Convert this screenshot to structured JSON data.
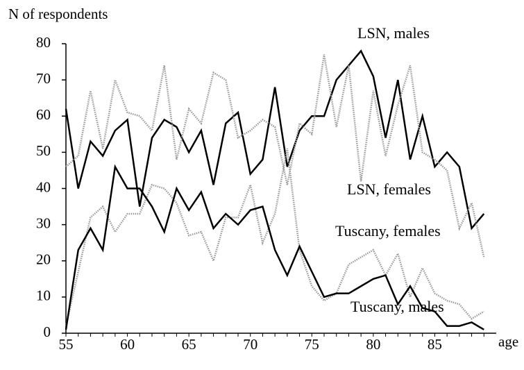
{
  "chart_data": {
    "type": "line",
    "y_label": "N of respondents",
    "x_label": "age",
    "x": [
      55,
      56,
      57,
      58,
      59,
      60,
      61,
      62,
      63,
      64,
      65,
      66,
      67,
      68,
      69,
      70,
      71,
      72,
      73,
      74,
      75,
      76,
      77,
      78,
      79,
      80,
      81,
      82,
      83,
      84,
      85,
      86,
      87,
      88,
      89
    ],
    "xlim": [
      55,
      90
    ],
    "xticks": [
      55,
      60,
      65,
      70,
      75,
      80,
      85
    ],
    "ylim": [
      0,
      80
    ],
    "yticks": [
      0,
      10,
      20,
      30,
      40,
      50,
      60,
      70,
      80
    ],
    "series": [
      {
        "name": "LSN, males",
        "color": "#000000",
        "style": "solid",
        "values": [
          62,
          40,
          53,
          49,
          56,
          59,
          35,
          54,
          59,
          57,
          50,
          56,
          41,
          58,
          61,
          44,
          48,
          68,
          46,
          56,
          60,
          60,
          70,
          74,
          78,
          71,
          54,
          70,
          48,
          60,
          46,
          50,
          46,
          29,
          33
        ]
      },
      {
        "name": "LSN, females",
        "color": "#999999",
        "style": "dotted",
        "values": [
          46,
          49,
          67,
          51,
          70,
          61,
          60,
          56,
          74,
          48,
          62,
          58,
          72,
          70,
          54,
          56,
          59,
          57,
          41,
          58,
          55,
          77,
          57,
          74,
          42,
          67,
          49,
          63,
          74,
          50,
          48,
          45,
          29,
          36,
          21
        ]
      },
      {
        "name": "Tuscany, females",
        "color": "#999999",
        "style": "dotted",
        "values": [
          2,
          17,
          32,
          35,
          28,
          33,
          33,
          41,
          40,
          36,
          27,
          28,
          20,
          32,
          32,
          41,
          25,
          33,
          51,
          23,
          13,
          9,
          11,
          19,
          21,
          23,
          16,
          22,
          10,
          18,
          11,
          9,
          8,
          4,
          6
        ]
      },
      {
        "name": "Tuscany, males",
        "color": "#000000",
        "style": "solid",
        "values": [
          1,
          23,
          29,
          23,
          46,
          40,
          40,
          35,
          28,
          40,
          34,
          39,
          29,
          33,
          30,
          34,
          35,
          23,
          16,
          24,
          17,
          10,
          11,
          11,
          13,
          15,
          16,
          8,
          13,
          7,
          6,
          2,
          2,
          3,
          1
        ]
      }
    ]
  }
}
